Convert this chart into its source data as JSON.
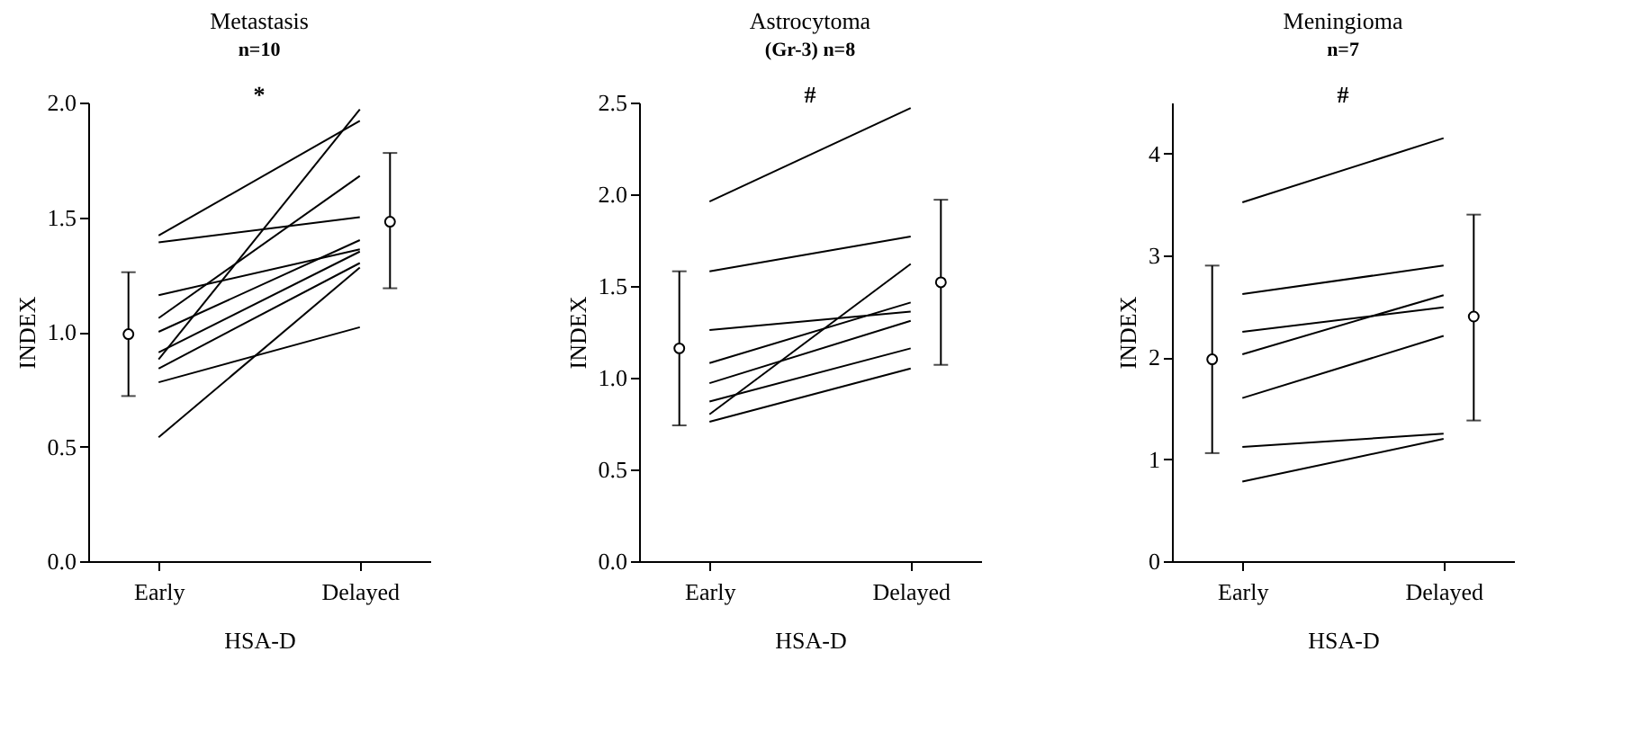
{
  "chart_data": [
    {
      "type": "line",
      "title": "Metastasis",
      "subtitle": "n=10",
      "xlabel": "HSA-D",
      "ylabel": "INDEX",
      "categories": [
        "Early",
        "Delayed"
      ],
      "ylim": [
        0,
        2.0
      ],
      "yticks": [
        {
          "value": 0,
          "label": "0.0"
        },
        0.5,
        {
          "value": 1,
          "label": "1.0"
        },
        1.5,
        {
          "value": 2,
          "label": "2.0"
        }
      ],
      "marker": "none",
      "line_style": "solid",
      "annotations": [
        "*"
      ],
      "series": [
        {
          "color": "#000000",
          "values": [
            1.42,
            1.92
          ]
        },
        {
          "color": "#000000",
          "values": [
            1.39,
            1.5
          ]
        },
        {
          "color": "#000000",
          "values": [
            1.16,
            1.36
          ]
        },
        {
          "color": "#000000",
          "values": [
            1.06,
            1.68
          ]
        },
        {
          "color": "#000000",
          "values": [
            1.0,
            1.4
          ]
        },
        {
          "color": "#000000",
          "values": [
            0.91,
            1.35
          ]
        },
        {
          "color": "#000000",
          "values": [
            0.88,
            1.97
          ]
        },
        {
          "color": "#000000",
          "values": [
            0.84,
            1.3
          ]
        },
        {
          "color": "#000000",
          "values": [
            0.78,
            1.02
          ]
        },
        {
          "color": "#000000",
          "values": [
            0.54,
            1.28
          ]
        },
        {
          "type": "scatter",
          "marker": "circle",
          "color": "#000000",
          "values": [
            0.99,
            1.48
          ],
          "errors": [
            [
              0.72,
              1.26
            ],
            [
              1.19,
              1.78
            ]
          ]
        }
      ]
    },
    {
      "type": "line",
      "title": "Astrocytoma",
      "subtitle": "(Gr-3)    n=8",
      "xlabel": "HSA-D",
      "ylabel": "INDEX",
      "categories": [
        "Early",
        "Delayed"
      ],
      "ylim": [
        0,
        2.5
      ],
      "yticks": [
        {
          "value": 0,
          "label": "0.0"
        },
        0.5,
        {
          "value": 1,
          "label": "1.0"
        },
        1.5,
        {
          "value": 2,
          "label": "2.0"
        },
        2.5
      ],
      "marker": "none",
      "line_style": "solid",
      "annotations": [
        "#"
      ],
      "series": [
        {
          "color": "#000000",
          "values": [
            1.96,
            2.47
          ]
        },
        {
          "color": "#000000",
          "values": [
            1.58,
            1.77
          ]
        },
        {
          "color": "#000000",
          "values": [
            1.26,
            1.36
          ]
        },
        {
          "color": "#000000",
          "values": [
            1.08,
            1.41
          ]
        },
        {
          "color": "#000000",
          "values": [
            0.97,
            1.31
          ]
        },
        {
          "color": "#000000",
          "values": [
            0.87,
            1.16
          ]
        },
        {
          "color": "#000000",
          "values": [
            0.8,
            1.62
          ]
        },
        {
          "color": "#000000",
          "values": [
            0.76,
            1.05
          ]
        },
        {
          "type": "scatter",
          "marker": "circle",
          "color": "#000000",
          "values": [
            1.16,
            1.52
          ],
          "errors": [
            [
              0.74,
              1.58
            ],
            [
              1.07,
              1.97
            ]
          ]
        }
      ]
    },
    {
      "type": "line",
      "title": "Meningioma",
      "subtitle": "n=7",
      "xlabel": "HSA-D",
      "ylabel": "INDEX",
      "categories": [
        "Early",
        "Delayed"
      ],
      "ylim": [
        0,
        4.5
      ],
      "yticks": [
        0,
        1,
        2,
        3,
        4
      ],
      "marker": "none",
      "line_style": "solid",
      "annotations": [
        "#"
      ],
      "series": [
        {
          "color": "#000000",
          "values": [
            3.52,
            4.15
          ]
        },
        {
          "color": "#000000",
          "values": [
            2.62,
            2.9
          ]
        },
        {
          "color": "#000000",
          "values": [
            2.25,
            2.49
          ]
        },
        {
          "color": "#000000",
          "values": [
            2.03,
            2.61
          ]
        },
        {
          "color": "#000000",
          "values": [
            1.6,
            2.21
          ]
        },
        {
          "color": "#000000",
          "values": [
            1.12,
            1.25
          ]
        },
        {
          "color": "#000000",
          "values": [
            0.78,
            1.2
          ]
        },
        {
          "type": "scatter",
          "marker": "circle",
          "color": "#000000",
          "values": [
            1.98,
            2.4
          ],
          "errors": [
            [
              1.06,
              2.9
            ],
            [
              1.38,
              3.4
            ]
          ]
        }
      ]
    }
  ]
}
